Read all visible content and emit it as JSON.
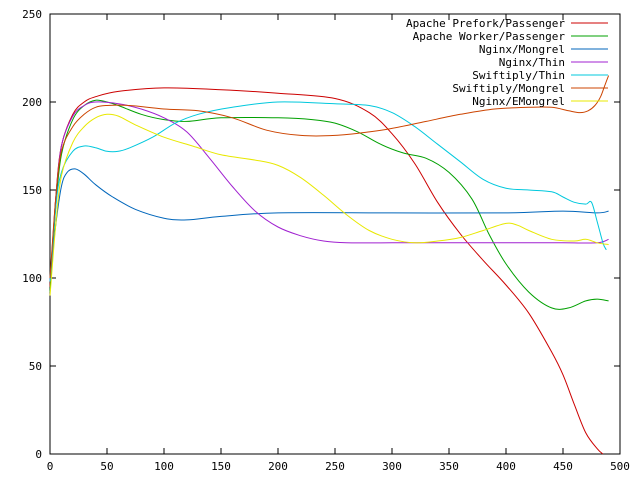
{
  "chart_data": {
    "type": "line",
    "title": "",
    "xlabel": "",
    "ylabel": "",
    "xlim": [
      0,
      500
    ],
    "ylim": [
      0,
      250
    ],
    "xticks": [
      0,
      50,
      100,
      150,
      200,
      250,
      300,
      350,
      400,
      450,
      500
    ],
    "yticks": [
      0,
      50,
      100,
      150,
      200,
      250
    ],
    "grid": false,
    "legend_position": "top-right",
    "series": [
      {
        "name": "Apache Prefork/Passenger",
        "color": "#cc0000",
        "points": [
          [
            0,
            95
          ],
          [
            5,
            145
          ],
          [
            10,
            175
          ],
          [
            20,
            193
          ],
          [
            30,
            200
          ],
          [
            40,
            203
          ],
          [
            60,
            206
          ],
          [
            100,
            208
          ],
          [
            150,
            207
          ],
          [
            200,
            205
          ],
          [
            250,
            202
          ],
          [
            280,
            194
          ],
          [
            300,
            182
          ],
          [
            320,
            165
          ],
          [
            340,
            143
          ],
          [
            360,
            125
          ],
          [
            380,
            110
          ],
          [
            400,
            96
          ],
          [
            420,
            80
          ],
          [
            440,
            58
          ],
          [
            450,
            45
          ],
          [
            460,
            28
          ],
          [
            470,
            12
          ],
          [
            480,
            3
          ],
          [
            485,
            0
          ]
        ]
      },
      {
        "name": "Apache Worker/Passenger",
        "color": "#00a000",
        "points": [
          [
            0,
            92
          ],
          [
            5,
            140
          ],
          [
            10,
            170
          ],
          [
            20,
            190
          ],
          [
            30,
            198
          ],
          [
            40,
            201
          ],
          [
            50,
            200
          ],
          [
            60,
            198
          ],
          [
            80,
            193
          ],
          [
            100,
            190
          ],
          [
            120,
            189
          ],
          [
            150,
            191
          ],
          [
            200,
            191
          ],
          [
            230,
            190
          ],
          [
            250,
            188
          ],
          [
            270,
            183
          ],
          [
            290,
            176
          ],
          [
            310,
            171
          ],
          [
            330,
            168
          ],
          [
            350,
            160
          ],
          [
            370,
            145
          ],
          [
            385,
            125
          ],
          [
            400,
            108
          ],
          [
            420,
            92
          ],
          [
            440,
            83
          ],
          [
            455,
            83
          ],
          [
            470,
            87
          ],
          [
            480,
            88
          ],
          [
            490,
            87
          ]
        ]
      },
      {
        "name": "Nginx/Mongrel",
        "color": "#0066bb",
        "points": [
          [
            0,
            100
          ],
          [
            5,
            130
          ],
          [
            10,
            152
          ],
          [
            15,
            160
          ],
          [
            22,
            162
          ],
          [
            30,
            159
          ],
          [
            40,
            153
          ],
          [
            55,
            146
          ],
          [
            75,
            139
          ],
          [
            100,
            134
          ],
          [
            120,
            133
          ],
          [
            150,
            135
          ],
          [
            200,
            137
          ],
          [
            300,
            137
          ],
          [
            400,
            137
          ],
          [
            450,
            138
          ],
          [
            480,
            137
          ],
          [
            490,
            138
          ]
        ]
      },
      {
        "name": "Nginx/Thin",
        "color": "#a020d0",
        "points": [
          [
            0,
            98
          ],
          [
            5,
            145
          ],
          [
            10,
            175
          ],
          [
            20,
            192
          ],
          [
            30,
            198
          ],
          [
            40,
            200
          ],
          [
            60,
            199
          ],
          [
            80,
            196
          ],
          [
            100,
            191
          ],
          [
            120,
            183
          ],
          [
            140,
            168
          ],
          [
            160,
            152
          ],
          [
            180,
            138
          ],
          [
            200,
            129
          ],
          [
            220,
            124
          ],
          [
            240,
            121
          ],
          [
            260,
            120
          ],
          [
            300,
            120
          ],
          [
            400,
            120
          ],
          [
            450,
            120
          ],
          [
            480,
            120
          ],
          [
            490,
            122
          ]
        ]
      },
      {
        "name": "Swiftiply/Thin",
        "color": "#00c8dd",
        "points": [
          [
            0,
            98
          ],
          [
            5,
            140
          ],
          [
            10,
            160
          ],
          [
            20,
            172
          ],
          [
            30,
            175
          ],
          [
            40,
            174
          ],
          [
            50,
            172
          ],
          [
            60,
            172
          ],
          [
            70,
            174
          ],
          [
            90,
            180
          ],
          [
            110,
            188
          ],
          [
            130,
            193
          ],
          [
            160,
            197
          ],
          [
            200,
            200
          ],
          [
            250,
            199
          ],
          [
            280,
            198
          ],
          [
            300,
            194
          ],
          [
            320,
            186
          ],
          [
            340,
            176
          ],
          [
            360,
            166
          ],
          [
            380,
            156
          ],
          [
            400,
            151
          ],
          [
            420,
            150
          ],
          [
            440,
            149
          ],
          [
            450,
            146
          ],
          [
            460,
            143
          ],
          [
            470,
            142
          ],
          [
            475,
            143
          ],
          [
            480,
            132
          ],
          [
            485,
            120
          ],
          [
            488,
            116
          ]
        ]
      },
      {
        "name": "Swiftiply/Mongrel",
        "color": "#cc4400",
        "points": [
          [
            0,
            100
          ],
          [
            5,
            145
          ],
          [
            10,
            172
          ],
          [
            20,
            186
          ],
          [
            30,
            193
          ],
          [
            40,
            197
          ],
          [
            50,
            198
          ],
          [
            70,
            198
          ],
          [
            100,
            196
          ],
          [
            130,
            195
          ],
          [
            160,
            191
          ],
          [
            190,
            184
          ],
          [
            220,
            181
          ],
          [
            250,
            181
          ],
          [
            280,
            183
          ],
          [
            300,
            185
          ],
          [
            330,
            189
          ],
          [
            360,
            193
          ],
          [
            390,
            196
          ],
          [
            420,
            197
          ],
          [
            440,
            197
          ],
          [
            455,
            195
          ],
          [
            465,
            194
          ],
          [
            472,
            195
          ],
          [
            478,
            198
          ],
          [
            483,
            203
          ],
          [
            487,
            210
          ],
          [
            490,
            215
          ]
        ]
      },
      {
        "name": "Nginx/EMongrel",
        "color": "#e8e800",
        "points": [
          [
            0,
            90
          ],
          [
            5,
            130
          ],
          [
            10,
            158
          ],
          [
            20,
            177
          ],
          [
            30,
            186
          ],
          [
            40,
            191
          ],
          [
            50,
            193
          ],
          [
            60,
            192
          ],
          [
            75,
            187
          ],
          [
            100,
            180
          ],
          [
            125,
            175
          ],
          [
            150,
            170
          ],
          [
            180,
            167
          ],
          [
            200,
            164
          ],
          [
            220,
            157
          ],
          [
            240,
            147
          ],
          [
            260,
            136
          ],
          [
            280,
            127
          ],
          [
            300,
            122
          ],
          [
            320,
            120
          ],
          [
            340,
            121
          ],
          [
            360,
            123
          ],
          [
            380,
            127
          ],
          [
            400,
            131
          ],
          [
            410,
            130
          ],
          [
            420,
            127
          ],
          [
            440,
            122
          ],
          [
            460,
            121
          ],
          [
            470,
            122
          ],
          [
            480,
            120
          ],
          [
            490,
            119
          ]
        ]
      }
    ]
  }
}
